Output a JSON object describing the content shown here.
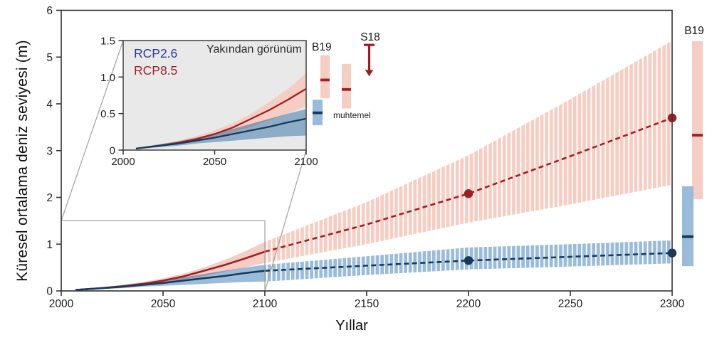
{
  "chart_data": {
    "type": "line",
    "title": "",
    "xlabel": "Yıllar",
    "ylabel": "Küresel ortalama deniz seviyesi (m)",
    "xlim": [
      2000,
      2300
    ],
    "ylim": [
      0,
      6
    ],
    "xticks": [
      "2000",
      "2050",
      "2100",
      "2150",
      "2200",
      "2250",
      "2300"
    ],
    "yticks": [
      "0",
      "1",
      "2",
      "3",
      "4",
      "5",
      "6"
    ],
    "grid": false,
    "solid_until": 2100,
    "x": [
      2007,
      2010,
      2020,
      2030,
      2040,
      2050,
      2060,
      2070,
      2080,
      2090,
      2100,
      2150,
      2200,
      2250,
      2300
    ],
    "series": [
      {
        "name": "RCP8.5",
        "line_color": "#9e2027",
        "band_color": "#f5cdc2",
        "label_color": "#9e222c",
        "median": [
          0.02,
          0.03,
          0.06,
          0.1,
          0.15,
          0.22,
          0.31,
          0.43,
          0.55,
          0.69,
          0.84,
          1.42,
          2.08,
          2.88,
          3.7
        ],
        "upper": [
          0.02,
          0.04,
          0.08,
          0.13,
          0.19,
          0.27,
          0.37,
          0.5,
          0.66,
          0.84,
          1.05,
          1.9,
          2.9,
          4.1,
          5.35
        ],
        "lower": [
          0.01,
          0.02,
          0.05,
          0.08,
          0.12,
          0.17,
          0.24,
          0.32,
          0.41,
          0.5,
          0.6,
          1.0,
          1.46,
          1.85,
          2.27
        ],
        "markers": [
          {
            "x": 2200,
            "y": 2.08
          },
          {
            "x": 2300,
            "y": 3.7
          }
        ]
      },
      {
        "name": "RCP2.6",
        "line_color": "#173a5c",
        "band_color": "#9abcda",
        "label_color": "#2e3c90",
        "median": [
          0.02,
          0.03,
          0.06,
          0.09,
          0.13,
          0.17,
          0.22,
          0.27,
          0.32,
          0.38,
          0.43,
          0.54,
          0.65,
          0.73,
          0.81
        ],
        "upper": [
          0.02,
          0.04,
          0.08,
          0.12,
          0.17,
          0.23,
          0.29,
          0.36,
          0.43,
          0.5,
          0.56,
          0.74,
          0.93,
          1.0,
          1.08
        ],
        "lower": [
          0.01,
          0.02,
          0.04,
          0.06,
          0.09,
          0.11,
          0.13,
          0.15,
          0.17,
          0.19,
          0.2,
          0.34,
          0.46,
          0.52,
          0.59
        ],
        "markers": [
          {
            "x": 2200,
            "y": 0.65
          },
          {
            "x": 2300,
            "y": 0.81
          }
        ]
      }
    ],
    "inset": {
      "title": "Yakından görünüm",
      "legend": [
        {
          "label": "RCP2.6",
          "color": "#2e3c90"
        },
        {
          "label": "RCP8.5",
          "color": "#9e222c"
        }
      ],
      "xlim": [
        2000,
        2100
      ],
      "ylim": [
        0,
        1.5
      ],
      "xticks": [
        "2000",
        "2050",
        "2100"
      ],
      "yticks": [
        "0",
        "0.5",
        "1.0",
        "1.5"
      ],
      "background": "#e9e9e9"
    },
    "annotations": {
      "at_2100": {
        "b19_label": "B19",
        "bars": [
          {
            "id": "b19-rcp85-2100",
            "series": "RCP8.5",
            "low": 0.71,
            "high": 1.3,
            "mid": 0.96
          },
          {
            "id": "b19-rcp26-2100",
            "series": "RCP2.6",
            "low": 0.34,
            "high": 0.69,
            "mid": 0.51
          },
          {
            "id": "muhtemel-rcp85-2100",
            "series": "RCP8.5",
            "low": 0.57,
            "high": 1.18,
            "mid": 0.83
          }
        ],
        "muhtemel_label": "muhtemel",
        "s18": {
          "label": "S18",
          "arrow_from": 1.44,
          "arrow_to": 1.01,
          "color": "#9b1c23"
        }
      },
      "at_2300": {
        "b19_label": "B19",
        "bars": [
          {
            "id": "b19-rcp85-2300",
            "series": "RCP8.5",
            "low": 1.96,
            "high": 5.34,
            "mid": 3.33
          },
          {
            "id": "b19-rcp26-2300",
            "series": "RCP2.6",
            "low": 0.53,
            "high": 2.24,
            "mid": 1.16
          }
        ]
      }
    },
    "colors": {
      "axis": "#333333",
      "tick_text": "#1f1f1f",
      "zoom_box": "#a0a0a0",
      "inset_frame": "#4a4a4a"
    }
  }
}
